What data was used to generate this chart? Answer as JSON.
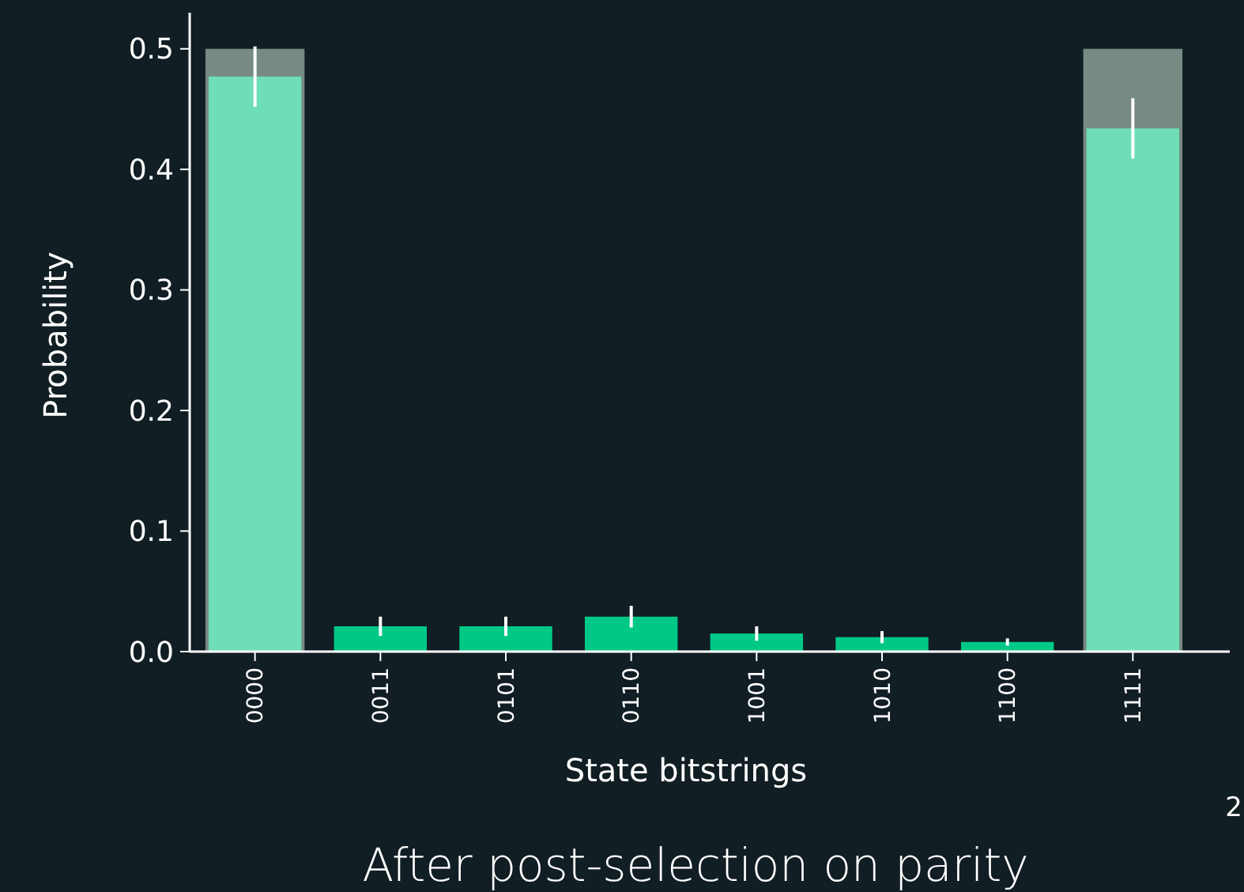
{
  "chart_data": {
    "type": "bar",
    "title": "After post-selection on parity",
    "xlabel": "State bitstrings",
    "ylabel": "Probability",
    "annotations": [
      "2"
    ],
    "categories": [
      "0000",
      "0011",
      "0101",
      "0110",
      "1001",
      "1010",
      "1100",
      "1111"
    ],
    "series": [
      {
        "color": "#778a84",
        "values": [
          0.5,
          0,
          0,
          0,
          0,
          0,
          0,
          0.5
        ]
      },
      {
        "colors": [
          "#6fdeb6",
          "#00c887",
          "#00c887",
          "#00c887",
          "#00c887",
          "#00c887",
          "#00c887",
          "#6fdeb6"
        ],
        "values": [
          0.477,
          0.021,
          0.021,
          0.029,
          0.015,
          0.012,
          0.008,
          0.434
        ],
        "errors": [
          0.025,
          0.008,
          0.008,
          0.009,
          0.006,
          0.005,
          0.003,
          0.025
        ]
      }
    ],
    "ylim": [
      0,
      0.53
    ],
    "yticks": [
      {
        "value": 0,
        "label": "0.0"
      },
      {
        "value": 0.1,
        "label": "0.1"
      },
      {
        "value": 0.2,
        "label": "0.2"
      },
      {
        "value": 0.3,
        "label": "0.3"
      },
      {
        "value": 0.4,
        "label": "0.4"
      },
      {
        "value": 0.5,
        "label": "0.5"
      }
    ],
    "grid": false
  }
}
